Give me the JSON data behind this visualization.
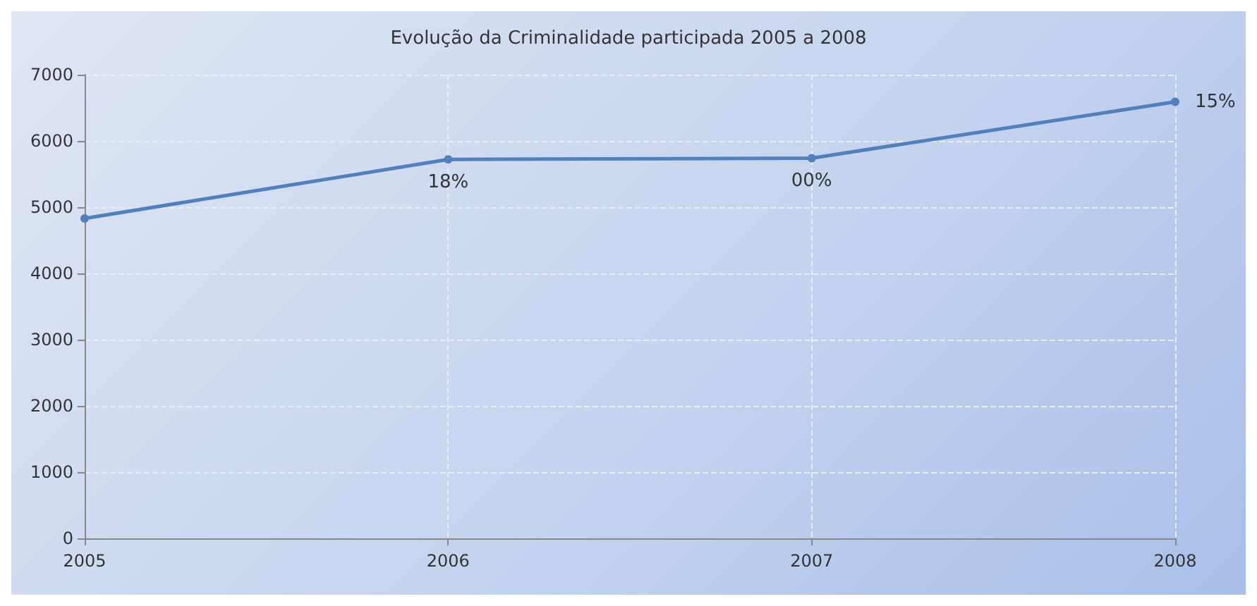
{
  "chart_data": {
    "type": "line",
    "title": "Evolução da Criminalidade participada 2005 a 2008",
    "categories": [
      "2005",
      "2006",
      "2007",
      "2008"
    ],
    "series": [
      {
        "color": "#4f81bd",
        "values": [
          4830,
          5720,
          5740,
          6590
        ]
      }
    ],
    "ylim": [
      0,
      7000
    ],
    "yticks": [
      0,
      1000,
      2000,
      3000,
      4000,
      5000,
      6000,
      7000
    ],
    "grid": true,
    "marker": "circle",
    "line_style": "solid",
    "annotations": [
      {
        "text": "18%",
        "x": "2006",
        "y": 5720
      },
      {
        "text": "00%",
        "x": "2007",
        "y": 5740
      },
      {
        "text": "15%",
        "x": "2008",
        "y": 6590
      }
    ]
  }
}
